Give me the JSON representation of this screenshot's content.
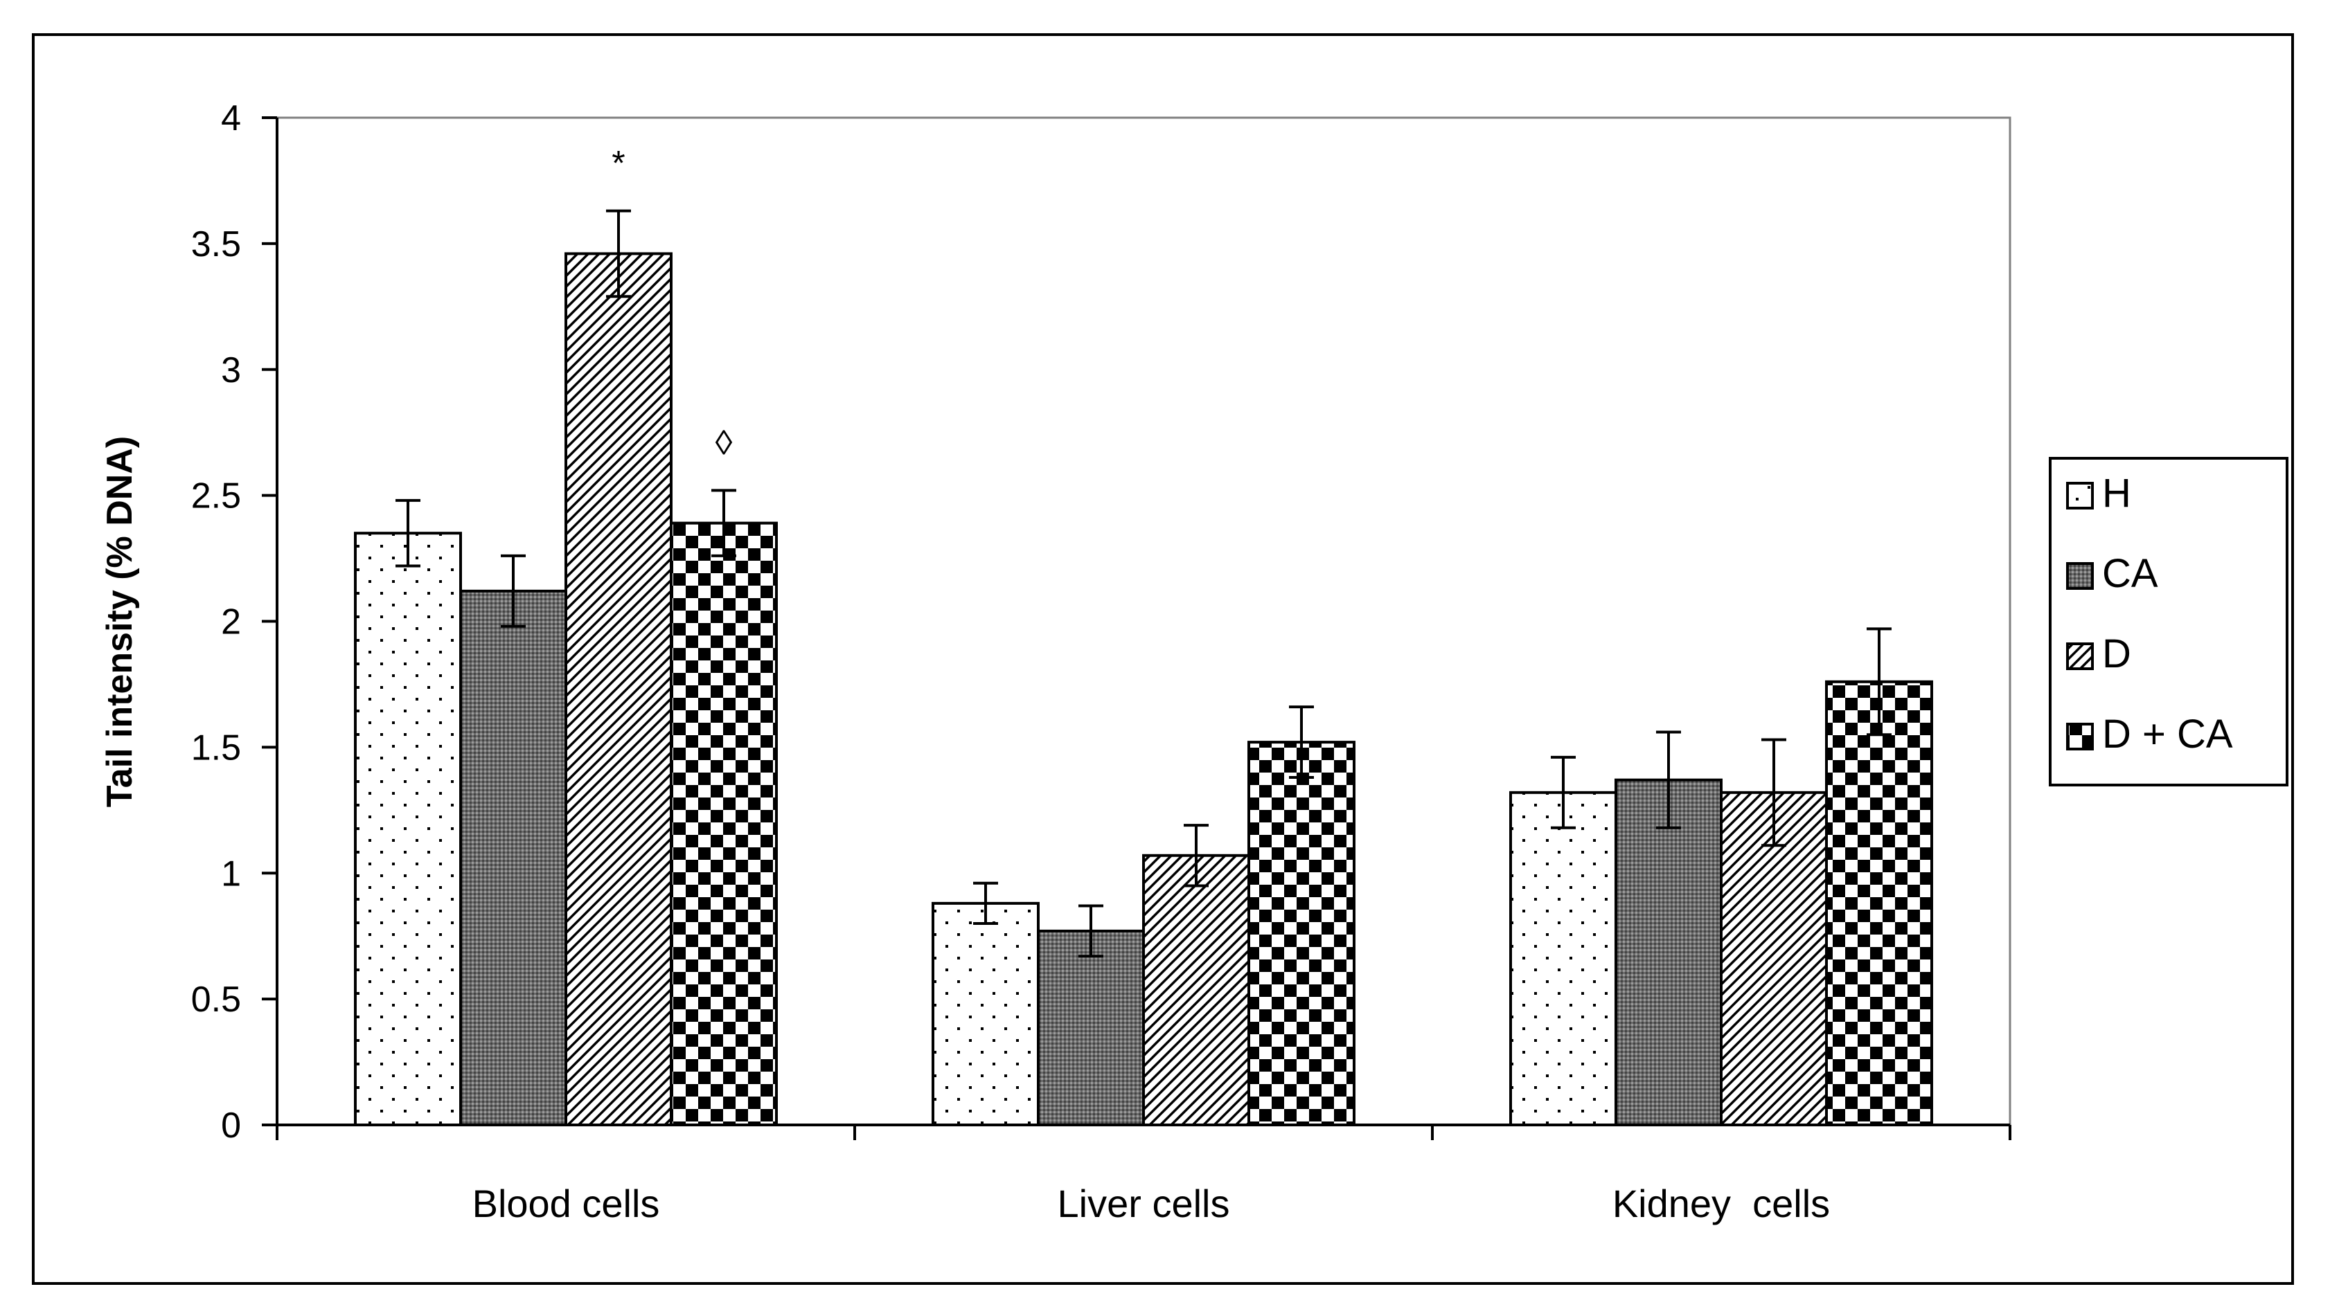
{
  "chart_data": {
    "type": "bar",
    "title": "",
    "xlabel": "",
    "ylabel": "Tail intensity (% DNA)",
    "ylim": [
      0,
      4
    ],
    "yticks": [
      "0",
      "0.5",
      "1",
      "1.5",
      "2",
      "2.5",
      "3",
      "3.5",
      "4"
    ],
    "grid": false,
    "legend_position": "right",
    "categories": [
      "Blood cells",
      "Liver cells",
      "Kidney  cells"
    ],
    "series": [
      {
        "name": "H",
        "pattern": "dots",
        "values": [
          2.35,
          0.88,
          1.32
        ],
        "errors": [
          0.13,
          0.08,
          0.14
        ]
      },
      {
        "name": "CA",
        "pattern": "fine-mesh",
        "values": [
          2.12,
          0.77,
          1.37
        ],
        "errors": [
          0.14,
          0.1,
          0.19
        ]
      },
      {
        "name": "D",
        "pattern": "diagonal-stripes",
        "values": [
          3.46,
          1.07,
          1.32
        ],
        "errors": [
          0.17,
          0.12,
          0.21
        ]
      },
      {
        "name": "D + CA",
        "pattern": "checkerboard",
        "values": [
          2.39,
          1.52,
          1.76
        ],
        "errors": [
          0.13,
          0.14,
          0.21
        ]
      }
    ],
    "annotations": [
      {
        "category": "Blood cells",
        "series": "D",
        "text": "*",
        "color": "#000000"
      },
      {
        "category": "Blood cells",
        "series": "D + CA",
        "text": "◊",
        "color": "#7f7f7f"
      }
    ]
  }
}
